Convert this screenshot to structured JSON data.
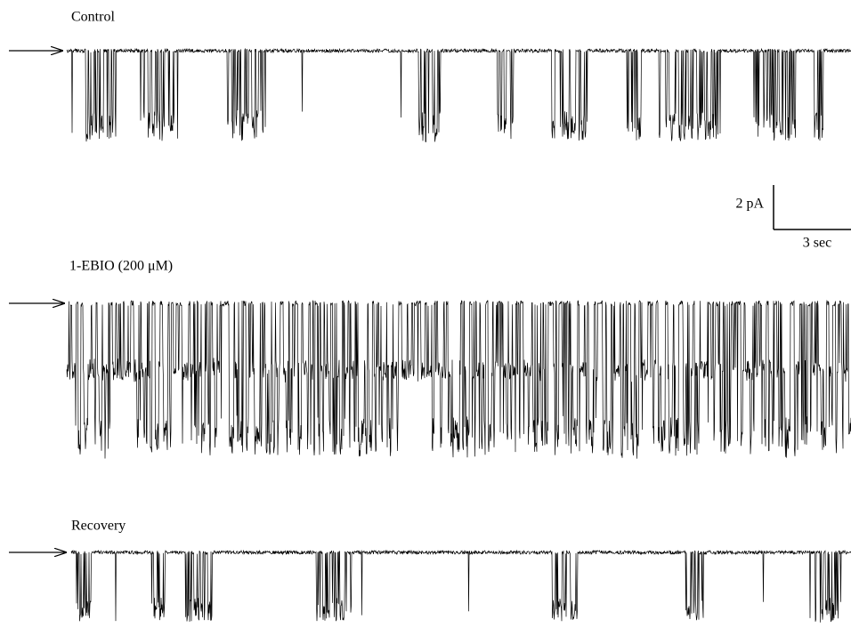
{
  "panels": [
    {
      "label": "Control"
    },
    {
      "label": "1-EBIO (200 μM)"
    },
    {
      "label": "Recovery"
    }
  ],
  "scale_bar": {
    "current": "2 pA",
    "time": "3 sec"
  }
}
